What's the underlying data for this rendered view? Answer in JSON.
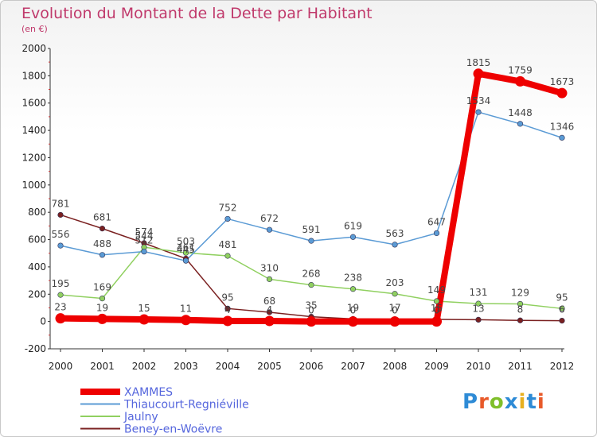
{
  "title": "Evolution du Montant de la Dette par Habitant",
  "unit": "(en €)",
  "logo": {
    "text": "Proxiti",
    "letter_colors": [
      "#2e8bd6",
      "#e85a2a",
      "#7fbf2a",
      "#2e8bd6",
      "#e8b020",
      "#2e8bd6",
      "#e85a2a"
    ]
  },
  "chart_data": {
    "type": "line",
    "x": [
      "2000",
      "2001",
      "2002",
      "2003",
      "2004",
      "2005",
      "2006",
      "2007",
      "2008",
      "2009",
      "2010",
      "2011",
      "2012"
    ],
    "ylim": [
      -200,
      2000
    ],
    "yticks": [
      "-200",
      "0",
      "200",
      "400",
      "600",
      "800",
      "1000",
      "1200",
      "1400",
      "1600",
      "1800",
      "2000"
    ],
    "grid": false,
    "legend_position": "bottom-left",
    "series": [
      {
        "name": "XAMMES",
        "color": "#ee0000",
        "values": [
          23,
          19,
          15,
          11,
          4,
          4,
          0,
          0,
          0,
          0,
          1815,
          1759,
          1673
        ],
        "labels": [
          "23",
          "19",
          "15",
          "11",
          "4",
          "4",
          "0",
          "0",
          "0",
          "0",
          "1815",
          "1759",
          "1673"
        ]
      },
      {
        "name": "Thiaucourt-Regniéville",
        "color": "#5b9bd5",
        "values": [
          556,
          488,
          512,
          445,
          752,
          672,
          591,
          619,
          563,
          647,
          1534,
          1448,
          1346
        ],
        "labels": [
          "556",
          "488",
          "512",
          "445",
          "752",
          "672",
          "591",
          "619",
          "563",
          "647",
          "1534",
          "1448",
          "1346"
        ]
      },
      {
        "name": "Jaulny",
        "color": "#90d060",
        "values": [
          195,
          169,
          544,
          503,
          481,
          310,
          268,
          238,
          203,
          149,
          131,
          129,
          95
        ],
        "labels": [
          "195",
          "169",
          "544",
          "503",
          "481",
          "310",
          "268",
          "238",
          "203",
          "149",
          "131",
          "129",
          "95"
        ]
      },
      {
        "name": "Beney-en-Woëvre",
        "color": "#7a2020",
        "values": [
          781,
          681,
          574,
          461,
          95,
          68,
          35,
          19,
          17,
          15,
          13,
          8,
          6
        ],
        "labels": [
          "781",
          "681",
          "574",
          "461",
          "95",
          "68",
          "35",
          "19",
          "17",
          "15",
          "13",
          "8",
          "6"
        ]
      }
    ]
  }
}
